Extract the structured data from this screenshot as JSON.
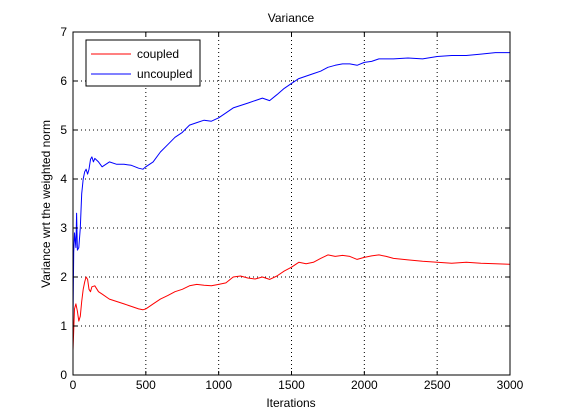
{
  "chart_data": {
    "type": "line",
    "title": "Variance",
    "xlabel": "Iterations",
    "ylabel": "Variance wrt the weighted norm",
    "xlim": [
      0,
      3000
    ],
    "ylim": [
      0,
      7
    ],
    "xticks": [
      0,
      500,
      1000,
      1500,
      2000,
      2500,
      3000
    ],
    "yticks": [
      0,
      1,
      2,
      3,
      4,
      5,
      6,
      7
    ],
    "xtick_labels": [
      "0",
      "500",
      "1000",
      "1500",
      "2000",
      "2500",
      "3000"
    ],
    "ytick_labels": [
      "0",
      "1",
      "2",
      "3",
      "4",
      "5",
      "6",
      "7"
    ],
    "grid": true,
    "legend_position": "top-left",
    "series": [
      {
        "name": "coupled",
        "color": "#ff0000",
        "x": [
          0,
          5,
          10,
          20,
          30,
          40,
          50,
          60,
          70,
          80,
          90,
          100,
          110,
          120,
          130,
          150,
          175,
          200,
          250,
          300,
          350,
          400,
          450,
          480,
          500,
          550,
          600,
          650,
          700,
          750,
          800,
          850,
          900,
          950,
          1000,
          1050,
          1100,
          1150,
          1200,
          1250,
          1300,
          1350,
          1400,
          1450,
          1500,
          1550,
          1600,
          1650,
          1700,
          1750,
          1800,
          1850,
          1900,
          1950,
          2000,
          2050,
          2100,
          2150,
          2200,
          2300,
          2400,
          2500,
          2600,
          2700,
          2800,
          2900,
          3000
        ],
        "y": [
          0.5,
          0.9,
          1.35,
          1.45,
          1.3,
          1.1,
          1.2,
          1.5,
          1.75,
          1.9,
          2.0,
          1.95,
          1.75,
          1.7,
          1.8,
          1.82,
          1.7,
          1.65,
          1.55,
          1.5,
          1.45,
          1.4,
          1.35,
          1.33,
          1.35,
          1.45,
          1.55,
          1.62,
          1.7,
          1.75,
          1.82,
          1.85,
          1.83,
          1.82,
          1.85,
          1.88,
          2.0,
          2.02,
          1.98,
          1.96,
          2.0,
          1.95,
          2.02,
          2.12,
          2.2,
          2.3,
          2.27,
          2.3,
          2.38,
          2.45,
          2.42,
          2.44,
          2.42,
          2.36,
          2.4,
          2.43,
          2.45,
          2.42,
          2.38,
          2.35,
          2.32,
          2.3,
          2.28,
          2.3,
          2.28,
          2.27,
          2.26
        ]
      },
      {
        "name": "uncoupled",
        "color": "#0000ff",
        "x": [
          0,
          5,
          10,
          20,
          25,
          30,
          40,
          50,
          60,
          70,
          80,
          90,
          100,
          110,
          120,
          130,
          140,
          150,
          175,
          200,
          250,
          300,
          350,
          400,
          450,
          480,
          500,
          550,
          600,
          650,
          700,
          750,
          800,
          850,
          900,
          950,
          1000,
          1050,
          1100,
          1150,
          1200,
          1250,
          1300,
          1350,
          1400,
          1450,
          1500,
          1550,
          1600,
          1650,
          1700,
          1750,
          1800,
          1850,
          1900,
          1950,
          2000,
          2050,
          2100,
          2200,
          2300,
          2400,
          2500,
          2600,
          2700,
          2800,
          2900,
          3000
        ],
        "y": [
          1.1,
          2.5,
          2.9,
          2.6,
          3.3,
          2.55,
          2.6,
          3.0,
          3.7,
          4.0,
          4.15,
          4.2,
          4.1,
          4.2,
          4.4,
          4.45,
          4.35,
          4.42,
          4.35,
          4.25,
          4.35,
          4.3,
          4.3,
          4.28,
          4.22,
          4.2,
          4.25,
          4.35,
          4.55,
          4.7,
          4.85,
          4.95,
          5.1,
          5.15,
          5.2,
          5.18,
          5.25,
          5.35,
          5.45,
          5.5,
          5.55,
          5.6,
          5.65,
          5.6,
          5.72,
          5.85,
          5.95,
          6.05,
          6.1,
          6.15,
          6.2,
          6.28,
          6.32,
          6.35,
          6.35,
          6.32,
          6.38,
          6.4,
          6.45,
          6.45,
          6.47,
          6.45,
          6.5,
          6.52,
          6.52,
          6.55,
          6.58,
          6.58
        ]
      }
    ]
  }
}
